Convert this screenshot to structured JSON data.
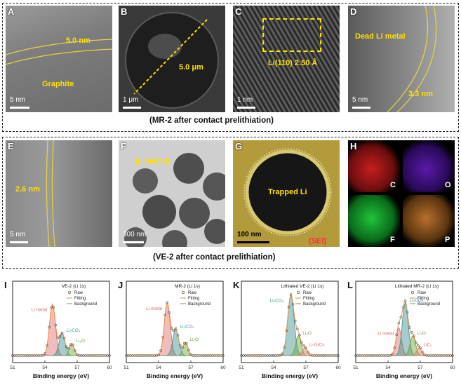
{
  "row1": {
    "caption": "(MR-2 after contact prelithiation)",
    "panels": [
      {
        "letter": "A",
        "scale": "5 nm",
        "annot1": "5.0 nm",
        "annot2": "Graphite"
      },
      {
        "letter": "B",
        "scale": "1 μm",
        "annot1": "5.0 μm"
      },
      {
        "letter": "C",
        "scale": "1 nm",
        "annot1": "Li(110) 2.50 Å"
      },
      {
        "letter": "D",
        "scale": "5 nm",
        "annot1": "Dead Li metal",
        "annot2": "3.3 nm"
      }
    ]
  },
  "row2": {
    "caption": "(VE-2 after contact prelithiation)",
    "panels": [
      {
        "letter": "E",
        "scale": "5 nm",
        "annot1": "2.6 nm"
      },
      {
        "letter": "F",
        "scale": "300 nm",
        "annot1": "(Li metal)"
      },
      {
        "letter": "G",
        "scale": "100 nm",
        "annot1": "Trapped Li",
        "annot2": "(SEI)"
      },
      {
        "letter": "H",
        "maps": [
          "C",
          "O",
          "F",
          "P"
        ],
        "map_colors": [
          "#c81e1e",
          "#5a1aa8",
          "#1fc43a",
          "#b8702a"
        ]
      }
    ]
  },
  "chart_data": [
    {
      "letter": "I",
      "type": "line",
      "title": "VE-2 (Li 1s)",
      "xlabel": "Binding energy (eV)",
      "ylabel": "",
      "x_ticks": [
        "51",
        "54",
        "57",
        "60"
      ],
      "xlim": [
        51,
        60
      ],
      "legend": [
        "Raw",
        "Fitting",
        "Background"
      ],
      "peaks": [
        {
          "name": "Li metal",
          "center": 54.7,
          "height": 0.78,
          "width": 0.55,
          "color": "#e06a6a"
        },
        {
          "name": "Li2CO3",
          "center": 55.6,
          "height": 0.34,
          "width": 0.55,
          "color": "#3a8f8f"
        },
        {
          "name": "Li2O",
          "center": 56.5,
          "height": 0.18,
          "width": 0.45,
          "color": "#6ea23a"
        }
      ]
    },
    {
      "letter": "J",
      "type": "line",
      "title": "MR-2 (Li 1s)",
      "xlabel": "Binding energy (eV)",
      "ylabel": "",
      "x_ticks": [
        "51",
        "54",
        "57",
        "60"
      ],
      "xlim": [
        51,
        60
      ],
      "legend": [
        "Raw",
        "Fitting",
        "Background"
      ],
      "peaks": [
        {
          "name": "Li metal",
          "center": 54.8,
          "height": 0.8,
          "width": 0.55,
          "color": "#e06a6a"
        },
        {
          "name": "Li2CO3",
          "center": 55.6,
          "height": 0.4,
          "width": 0.55,
          "color": "#3a8f8f"
        },
        {
          "name": "Li2O",
          "center": 56.5,
          "height": 0.2,
          "width": 0.45,
          "color": "#6ea23a"
        }
      ]
    },
    {
      "letter": "K",
      "type": "line",
      "title": "Lithiated VE-2 (Li 1s)",
      "xlabel": "Binding energy (eV)",
      "ylabel": "",
      "x_ticks": [
        "51",
        "54",
        "57",
        "60"
      ],
      "xlim": [
        51,
        60
      ],
      "legend": [
        "Raw",
        "Fitting",
        "Background"
      ],
      "peaks": [
        {
          "name": "Li2CO3",
          "center": 55.6,
          "height": 0.92,
          "width": 0.6,
          "color": "#3a8f8f"
        },
        {
          "name": "Li2O",
          "center": 56.3,
          "height": 0.3,
          "width": 0.5,
          "color": "#6ea23a"
        },
        {
          "name": "Li-GICs",
          "center": 56.9,
          "height": 0.12,
          "width": 0.45,
          "color": "#d97a5a"
        }
      ]
    },
    {
      "letter": "L",
      "type": "line",
      "title": "Lithiated MR-2 (Li 1s)",
      "xlabel": "Binding energy (eV)",
      "ylabel": "",
      "x_ticks": [
        "51",
        "54",
        "57",
        "60"
      ],
      "xlim": [
        51,
        60
      ],
      "legend": [
        "Raw",
        "Fitting",
        "Background"
      ],
      "peaks": [
        {
          "name": "Li metal",
          "center": 55.0,
          "height": 0.42,
          "width": 0.5,
          "color": "#e06a6a"
        },
        {
          "name": "Li2CO3",
          "center": 55.6,
          "height": 0.8,
          "width": 0.55,
          "color": "#3a8f8f"
        },
        {
          "name": "Li2O",
          "center": 56.3,
          "height": 0.3,
          "width": 0.5,
          "color": "#6ea23a"
        },
        {
          "name": "LiCx",
          "center": 56.9,
          "height": 0.12,
          "width": 0.45,
          "color": "#d97a5a"
        }
      ]
    }
  ]
}
